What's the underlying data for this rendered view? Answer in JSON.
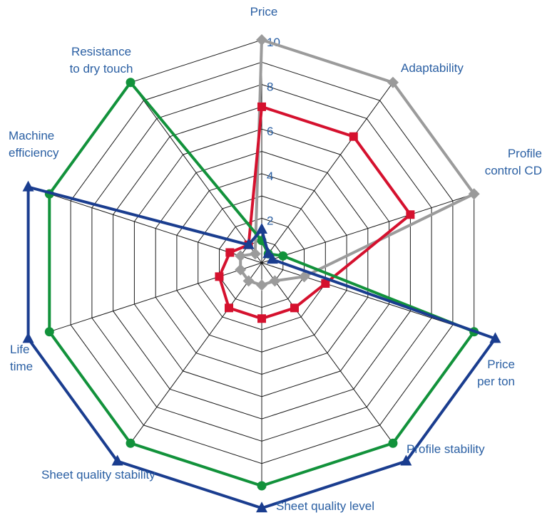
{
  "chart_data": {
    "type": "radar",
    "axes": [
      "Price",
      "Adaptability",
      "Profile control CD",
      "Price per ton",
      "Profile stability",
      "Sheet quality level",
      "Sheet quality stability",
      "Life time",
      "Machine efficiency",
      "Resistance to dry touch"
    ],
    "axis_label_lines": [
      [
        "Price"
      ],
      [
        "Adaptability"
      ],
      [
        "Profile",
        "control CD"
      ],
      [
        "Price",
        "per ton"
      ],
      [
        "Profile stability"
      ],
      [
        "Sheet quality level"
      ],
      [
        "Sheet quality stability"
      ],
      [
        "Life",
        "time"
      ],
      [
        "Machine",
        "efficiency"
      ],
      [
        "Resistance",
        "to dry touch"
      ]
    ],
    "r_range": [
      0,
      10
    ],
    "r_ticks": [
      "2",
      "4",
      "6",
      "8",
      "10"
    ],
    "grid": true,
    "series": [
      {
        "color": "#9b9b9b",
        "marker": "diamond",
        "values": [
          10,
          10,
          10,
          2,
          1,
          1,
          1,
          1,
          1,
          0.5
        ]
      },
      {
        "color": "#d5112e",
        "marker": "square",
        "values": [
          7,
          7,
          7,
          3,
          2.5,
          2.5,
          2.5,
          2,
          1.5,
          1
        ]
      },
      {
        "color": "#12923b",
        "marker": "circle",
        "values": [
          1,
          0.5,
          1,
          10,
          10,
          10,
          10,
          10,
          10,
          10
        ]
      },
      {
        "color": "#1a3d8f",
        "marker": "triangle",
        "values": [
          1.5,
          0.5,
          0.5,
          11,
          11,
          11,
          11,
          11,
          11,
          1
        ]
      }
    ]
  }
}
